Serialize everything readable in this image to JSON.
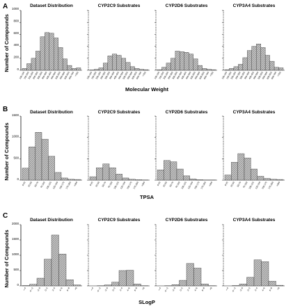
{
  "figure": {
    "panels": [
      {
        "letter": "A",
        "ylabel": "Number of Compounds",
        "xlabel": "Molecular Weight",
        "yticks": [
          "1000",
          "800",
          "600",
          "400",
          "200",
          "0"
        ]
      },
      {
        "letter": "B",
        "ylabel": "Number of Compounds",
        "xlabel": "TPSA",
        "yticks": [
          "1500",
          "1000",
          "500",
          "0"
        ]
      },
      {
        "letter": "C",
        "ylabel": "Number of Compounds",
        "xlabel": "SLogP",
        "yticks": [
          "2000",
          "1500",
          "1000",
          "500",
          "0"
        ]
      }
    ]
  },
  "chart_data": [
    {
      "type": "bar",
      "title": "Dataset Distribution",
      "xlabel": "Molecular Weight",
      "ylabel": "Number of Compounds",
      "ylim": [
        0,
        1000
      ],
      "categories": [
        "100-150",
        "150-200",
        "200-250",
        "250-300",
        "300-350",
        "350-400",
        "400-450",
        "450-500",
        "500-550",
        "550-600",
        "600-650",
        "650-700",
        ">700"
      ],
      "values": [
        30,
        110,
        200,
        320,
        560,
        630,
        620,
        540,
        380,
        190,
        80,
        30,
        40
      ]
    },
    {
      "type": "bar",
      "title": "CYP2C9 Substrates",
      "xlabel": "Molecular Weight",
      "ylabel": "Number of Compounds",
      "ylim": [
        0,
        1000
      ],
      "categories": [
        "100-150",
        "150-200",
        "200-250",
        "250-300",
        "300-350",
        "350-400",
        "400-450",
        "450-500",
        "500-550",
        "550-600",
        "600-650",
        "650-700",
        ">700"
      ],
      "values": [
        5,
        15,
        40,
        120,
        240,
        270,
        250,
        200,
        130,
        60,
        30,
        15,
        10
      ]
    },
    {
      "type": "bar",
      "title": "CYP2D6 Substrates",
      "xlabel": "Molecular Weight",
      "ylabel": "Number of Compounds",
      "ylim": [
        0,
        1000
      ],
      "categories": [
        "100-150",
        "150-200",
        "200-250",
        "250-300",
        "300-350",
        "350-400",
        "400-450",
        "450-500",
        "500-550",
        "550-600",
        "600-650",
        "650-700",
        ">700"
      ],
      "values": [
        10,
        50,
        120,
        200,
        320,
        310,
        300,
        270,
        190,
        80,
        30,
        15,
        10
      ]
    },
    {
      "type": "bar",
      "title": "CYP3A4 Substrates",
      "xlabel": "Molecular Weight",
      "ylabel": "Number of Compounds",
      "ylim": [
        0,
        1000
      ],
      "categories": [
        "100-150",
        "150-200",
        "200-250",
        "250-300",
        "300-350",
        "350-400",
        "400-450",
        "450-500",
        "500-550",
        "550-600",
        "600-650",
        "650-700",
        ">700"
      ],
      "values": [
        10,
        30,
        60,
        100,
        210,
        330,
        400,
        440,
        380,
        250,
        150,
        50,
        40
      ]
    },
    {
      "type": "bar",
      "title": "Dataset Distribution",
      "xlabel": "TPSA",
      "ylabel": "Number of Compounds",
      "ylim": [
        0,
        1500
      ],
      "categories": [
        "0-25",
        "25-50",
        "50-75",
        "75-100",
        "100-125",
        "125-150",
        "150-175",
        "175-200",
        ">200"
      ],
      "values": [
        280,
        780,
        1120,
        960,
        560,
        180,
        50,
        20,
        15
      ]
    },
    {
      "type": "bar",
      "title": "CYP2C9 Substrates",
      "xlabel": "TPSA",
      "ylabel": "Number of Compounds",
      "ylim": [
        0,
        1500
      ],
      "categories": [
        "0-25",
        "25-50",
        "50-75",
        "75-100",
        "100-125",
        "125-150",
        "150-175",
        "175-200",
        ">200"
      ],
      "values": [
        80,
        290,
        380,
        290,
        140,
        50,
        20,
        10,
        5
      ]
    },
    {
      "type": "bar",
      "title": "CYP2D6 Substrates",
      "xlabel": "TPSA",
      "ylabel": "Number of Compounds",
      "ylim": [
        0,
        1500
      ],
      "categories": [
        "0-25",
        "25-50",
        "50-75",
        "75-100",
        "100-125",
        "125-150",
        "150-175",
        "175-200",
        ">200"
      ],
      "values": [
        240,
        460,
        430,
        260,
        100,
        30,
        10,
        5,
        5
      ]
    },
    {
      "type": "bar",
      "title": "CYP3A4 Substrates",
      "xlabel": "TPSA",
      "ylabel": "Number of Compounds",
      "ylim": [
        0,
        1500
      ],
      "categories": [
        "0-25",
        "25-50",
        "50-75",
        "75-100",
        "100-125",
        "125-150",
        "150-175",
        "175-200",
        ">200"
      ],
      "values": [
        120,
        420,
        620,
        520,
        260,
        90,
        40,
        20,
        15
      ]
    },
    {
      "type": "bar",
      "title": "Dataset Distribution",
      "xlabel": "SLogP",
      "ylabel": "Number of Compounds",
      "ylim": [
        0,
        2000
      ],
      "categories": [
        "<-4",
        "-4~-2",
        "-2~0",
        "0~2",
        "2~4",
        "4~6",
        "6~8",
        ">8"
      ],
      "values": [
        10,
        50,
        250,
        870,
        1660,
        1040,
        200,
        30
      ]
    },
    {
      "type": "bar",
      "title": "CYP2C9 Substrates",
      "xlabel": "SLogP",
      "ylabel": "Number of Compounds",
      "ylim": [
        0,
        2000
      ],
      "categories": [
        "<-4",
        "-4~-2",
        "-2~0",
        "0~2",
        "2~4",
        "4~6",
        "6~8",
        ">8"
      ],
      "values": [
        0,
        5,
        30,
        120,
        500,
        510,
        60,
        5
      ]
    },
    {
      "type": "bar",
      "title": "CYP2D6 Substrates",
      "xlabel": "SLogP",
      "ylabel": "Number of Compounds",
      "ylim": [
        0,
        2000
      ],
      "categories": [
        "<-4",
        "-4~-2",
        "-2~0",
        "0~2",
        "2~4",
        "4~6",
        "6~8",
        ">8"
      ],
      "values": [
        0,
        5,
        40,
        180,
        730,
        580,
        60,
        5
      ]
    },
    {
      "type": "bar",
      "title": "CYP3A4 Substrates",
      "xlabel": "SLogP",
      "ylabel": "Number of Compounds",
      "ylim": [
        0,
        2000
      ],
      "categories": [
        "<-4",
        "-4~-2",
        "-2~0",
        "0~2",
        "2~4",
        "4~6",
        "6~8",
        ">8"
      ],
      "values": [
        0,
        10,
        60,
        280,
        850,
        790,
        150,
        20
      ]
    }
  ]
}
